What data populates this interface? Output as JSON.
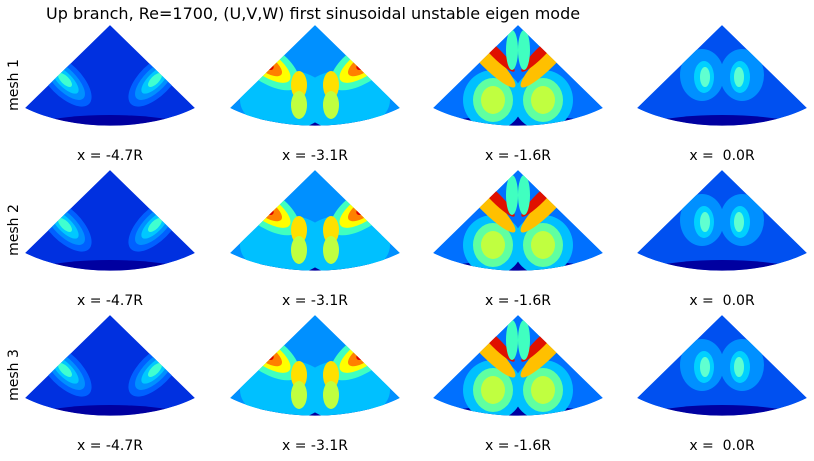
{
  "chart_data": {
    "type": "contour",
    "title": "Up branch, Re=1700, (U,V,W) first sinusoidal unstable eigen mode",
    "rows": [
      "mesh 1",
      "mesh 2",
      "mesh 3"
    ],
    "panels": [
      [
        "x = -4.7R",
        "x = -3.1R",
        "x = -1.6R",
        "x =  0.0R"
      ],
      [
        "x = -4.7R",
        "x = -3.1R",
        "x = -1.6R",
        "x =  0.0R"
      ],
      [
        "x = -4.7R",
        "x = -3.1R",
        "x = -1.6R",
        "x =  0.0R"
      ]
    ]
  }
}
